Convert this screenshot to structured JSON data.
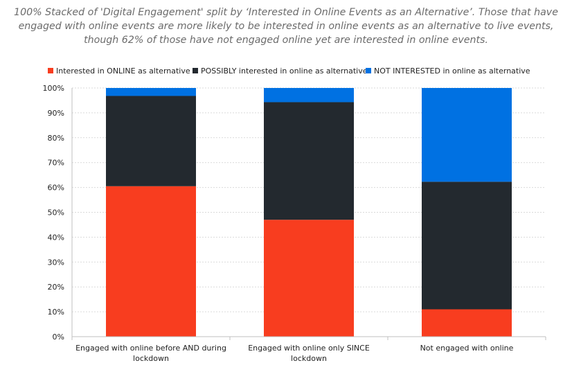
{
  "chart_data": {
    "type": "bar",
    "stacked": true,
    "normalized": true,
    "title": "100% Stacked of 'Digital Engagement' split by  ‘Interested in Online Events as an Alternative’. Those that have engaged with online events are more likely to be interested in online events as an alternative to live events, though 62% of those have not engaged online yet are interested in online events.",
    "categories": [
      "Engaged with online before AND during lockdown",
      "Engaged with online only SINCE lockdown",
      "Not engaged with online"
    ],
    "series": [
      {
        "name": "Interested in ONLINE as alternative",
        "color": "#f83d1f",
        "values": [
          60.5,
          47,
          11
        ]
      },
      {
        "name": "POSSIBLY interested in online as alternative",
        "color": "#23292f",
        "values": [
          36.3,
          47.3,
          51.3
        ]
      },
      {
        "name": "NOT INTERESTED in online as alternative",
        "color": "#0071e2",
        "values": [
          3.2,
          5.7,
          37.7
        ]
      }
    ],
    "ylim": [
      0,
      100
    ],
    "yticks": [
      "0%",
      "10%",
      "20%",
      "30%",
      "40%",
      "50%",
      "60%",
      "70%",
      "80%",
      "90%",
      "100%"
    ],
    "grid": true,
    "legend_position": "top"
  }
}
